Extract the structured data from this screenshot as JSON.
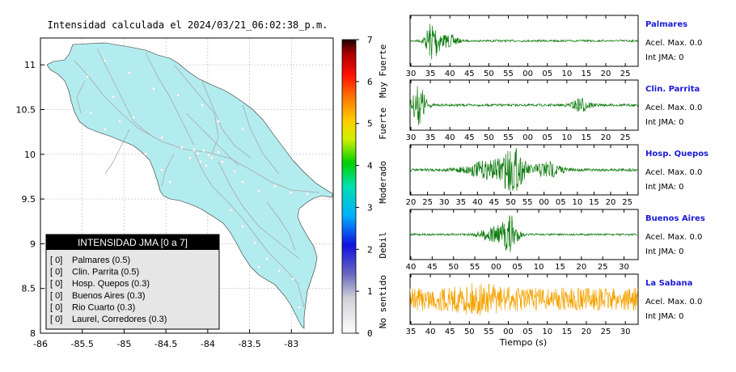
{
  "map_title": "Intensidad calculada el 2024/03/21_06:02:38_p.m.",
  "legend": {
    "title": "INTENSIDAD JMA [0 a 7]",
    "entries": [
      {
        "code": "[ 0]",
        "label": "Palmares (0.5)"
      },
      {
        "code": "[ 0]",
        "label": "Clin. Parrita (0.5)"
      },
      {
        "code": "[ 0]",
        "label": "Hosp. Quepos (0.3)"
      },
      {
        "code": "[ 0]",
        "label": "Buenos Aires (0.3)"
      },
      {
        "code": "[ 0]",
        "label": "Rio Cuarto (0.3)"
      },
      {
        "code": "[ 0]",
        "label": "Laurel, Corredores (0.3)"
      }
    ]
  },
  "colorbar": {
    "min": 0,
    "max": 7,
    "ticks": [
      "0",
      "1",
      "2",
      "3",
      "4",
      "5",
      "6",
      "7"
    ],
    "category_labels": [
      "No sentido",
      "Debil",
      "Moderado",
      "Fuerte",
      "Muy Fuerte"
    ]
  },
  "colors": {
    "land": "#b3ecee",
    "wave_green": "#0b7a0b",
    "wave_orange": "#f5a300",
    "station_name": "#1a1ad6"
  },
  "chart_data": [
    {
      "type": "map",
      "xlim": [
        -86,
        -82.5
      ],
      "ylim": [
        8,
        11.3
      ],
      "x_ticks": [
        "-86",
        "-85.5",
        "-85",
        "-84.5",
        "-84",
        "-83.5",
        "-83"
      ],
      "y_ticks": [
        "8",
        "8.5",
        "9",
        "9.5",
        "10",
        "10.5",
        "11"
      ],
      "grid": true
    },
    {
      "type": "line",
      "series": [
        {
          "station": "Palmares",
          "accel": "Acel. Max. 0.0",
          "intensity": "Int JMA: 0",
          "color": "#0b7a0b",
          "x_ticks": [
            "30",
            "35",
            "40",
            "45",
            "50",
            "55",
            "00",
            "05",
            "10",
            "15",
            "20",
            "25"
          ]
        },
        {
          "station": "Clin. Parrita",
          "accel": "Acel. Max. 0.0",
          "intensity": "Int JMA: 0",
          "color": "#0b7a0b",
          "x_ticks": [
            "30",
            "35",
            "40",
            "45",
            "50",
            "55",
            "00",
            "05",
            "10",
            "15",
            "20",
            "25"
          ]
        },
        {
          "station": "Hosp. Quepos",
          "accel": "Acel. Max. 0.0",
          "intensity": "Int JMA: 0",
          "color": "#0b7a0b",
          "x_ticks": [
            "20",
            "25",
            "30",
            "35",
            "40",
            "45",
            "50",
            "55",
            "00",
            "05",
            "10",
            "15",
            "20",
            "25"
          ]
        },
        {
          "station": "Buenos Aires",
          "accel": "Acel. Max. 0.0",
          "intensity": "Int JMA: 0",
          "color": "#0b7a0b",
          "x_ticks": [
            "40",
            "45",
            "50",
            "55",
            "00",
            "05",
            "10",
            "15",
            "20",
            "25",
            "30"
          ]
        },
        {
          "station": "La Sabana",
          "accel": "Acel. Max. 0.0",
          "intensity": "Int JMA: 0",
          "color": "#f5a300",
          "x_ticks": [
            "35",
            "40",
            "45",
            "50",
            "55",
            "00",
            "05",
            "10",
            "15",
            "20",
            "25",
            "30"
          ]
        }
      ],
      "xlabel": "Tiempo (s)"
    }
  ]
}
